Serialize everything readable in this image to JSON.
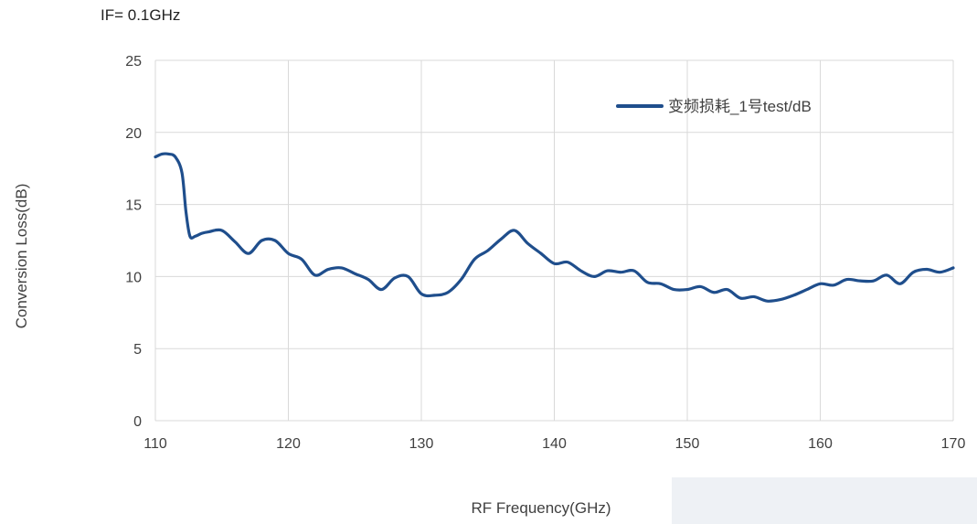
{
  "chart_data": {
    "type": "line",
    "title": "",
    "annotation": "IF= 0.1GHz",
    "xlabel": "RF Frequency(GHz)",
    "ylabel": "Conversion Loss(dB)",
    "xlim": [
      110,
      170
    ],
    "ylim": [
      0,
      25
    ],
    "xticks": [
      110,
      120,
      130,
      140,
      150,
      160,
      170
    ],
    "yticks": [
      0,
      5,
      10,
      15,
      20,
      25
    ],
    "grid": true,
    "legend_position": "top-right",
    "colors": {
      "series": "#1f4e8c",
      "grid": "#d9d9d9",
      "watermark": "#eef1f5"
    },
    "series": [
      {
        "name": "变频损耗_1号test/dB",
        "x": [
          110,
          110.5,
          111,
          111.5,
          112,
          112.3,
          112.6,
          113,
          113.5,
          114,
          115,
          116,
          117,
          118,
          119,
          120,
          121,
          122,
          123,
          124,
          125,
          126,
          127,
          128,
          129,
          130,
          131,
          132,
          133,
          134,
          135,
          136,
          137,
          138,
          139,
          140,
          141,
          142,
          143,
          144,
          145,
          146,
          147,
          148,
          149,
          150,
          151,
          152,
          153,
          154,
          155,
          156,
          157,
          158,
          159,
          160,
          161,
          162,
          163,
          164,
          165,
          166,
          167,
          168,
          169,
          170
        ],
        "y": [
          18.3,
          18.5,
          18.5,
          18.3,
          17.2,
          14.5,
          12.8,
          12.8,
          13.0,
          13.1,
          13.2,
          12.4,
          11.6,
          12.5,
          12.5,
          11.6,
          11.2,
          10.1,
          10.5,
          10.6,
          10.2,
          9.8,
          9.1,
          9.9,
          10.0,
          8.8,
          8.7,
          8.9,
          9.8,
          11.2,
          11.8,
          12.6,
          13.2,
          12.3,
          11.6,
          10.9,
          11.0,
          10.4,
          10.0,
          10.4,
          10.3,
          10.4,
          9.6,
          9.5,
          9.1,
          9.1,
          9.3,
          8.9,
          9.1,
          8.5,
          8.6,
          8.3,
          8.4,
          8.7,
          9.1,
          9.5,
          9.4,
          9.8,
          9.7,
          9.7,
          10.1,
          9.5,
          10.3,
          10.5,
          10.3,
          10.6
        ]
      }
    ]
  }
}
